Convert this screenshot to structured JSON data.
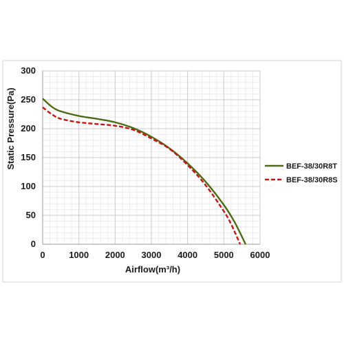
{
  "chart_data": {
    "type": "line",
    "xlabel": "Airflow(m³/h)",
    "ylabel": "Static Pressure(Pa)",
    "xlim": [
      0,
      6000
    ],
    "ylim": [
      0,
      300
    ],
    "x_ticks": [
      0,
      1000,
      2000,
      3000,
      4000,
      5000,
      6000
    ],
    "y_ticks": [
      0,
      50,
      100,
      150,
      200,
      250,
      300
    ],
    "grid": true,
    "minor_grid": true,
    "legend_position": "right",
    "series": [
      {
        "name": "BEF-38/30R8T",
        "color": "#4a6b12",
        "style": "solid",
        "x": [
          0,
          250,
          500,
          1000,
          1500,
          2000,
          2500,
          3000,
          3500,
          4000,
          4500,
          5000,
          5300,
          5600
        ],
        "y": [
          252,
          238,
          230,
          222,
          217,
          211,
          201,
          186,
          166,
          140,
          108,
          68,
          38,
          0
        ]
      },
      {
        "name": "BEF-38/30R8S",
        "color": "#cc1111",
        "style": "dashed",
        "x": [
          0,
          250,
          500,
          1000,
          1500,
          2000,
          2500,
          3000,
          3500,
          4000,
          4500,
          5000,
          5200,
          5450
        ],
        "y": [
          237,
          225,
          217,
          211,
          208,
          205,
          198,
          183,
          165,
          137,
          102,
          57,
          35,
          0
        ]
      }
    ]
  }
}
